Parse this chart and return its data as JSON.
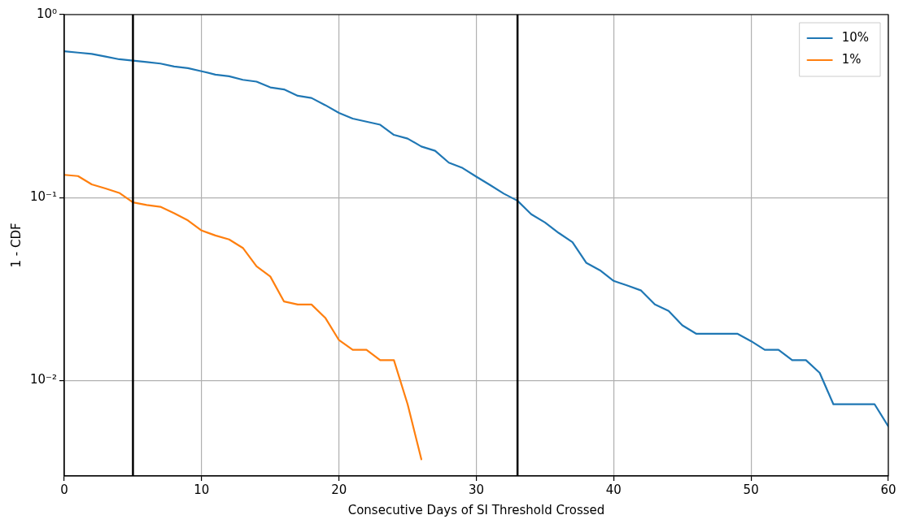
{
  "chart_data": {
    "type": "line",
    "xlabel": "Consecutive Days of SI Threshold Crossed",
    "ylabel": "1 - CDF",
    "x": [
      0,
      1,
      2,
      3,
      4,
      5,
      6,
      7,
      8,
      9,
      10,
      11,
      12,
      13,
      14,
      15,
      16,
      17,
      18,
      19,
      20,
      21,
      22,
      23,
      24,
      25,
      26,
      27,
      28,
      29,
      30,
      31,
      32,
      33,
      34,
      35,
      36,
      37,
      38,
      39,
      40,
      41,
      42,
      43,
      44,
      45,
      46,
      47,
      48,
      49,
      50,
      51,
      52,
      53,
      54,
      55,
      56,
      57,
      58,
      59,
      60
    ],
    "series": [
      {
        "name": "10%",
        "color": "#1f77b4",
        "values": [
          0.63,
          0.62,
          0.61,
          0.59,
          0.57,
          0.56,
          0.55,
          0.54,
          0.52,
          0.51,
          0.49,
          0.47,
          0.46,
          0.44,
          0.43,
          0.4,
          0.39,
          0.36,
          0.35,
          0.32,
          0.29,
          0.27,
          0.26,
          0.25,
          0.22,
          0.21,
          0.19,
          0.18,
          0.155,
          0.145,
          0.13,
          0.117,
          0.105,
          0.096,
          0.081,
          0.073,
          0.064,
          0.057,
          0.044,
          0.04,
          0.035,
          0.033,
          0.031,
          0.026,
          0.024,
          0.02,
          0.018,
          0.018,
          0.018,
          0.018,
          0.0164,
          0.0147,
          0.0147,
          0.0129,
          0.0129,
          0.011,
          0.0074,
          0.0074,
          0.0074,
          0.0074,
          0.0056
        ]
      },
      {
        "name": "1%",
        "color": "#ff7f0e",
        "x": [
          0,
          1,
          2,
          3,
          4,
          5,
          6,
          7,
          8,
          9,
          10,
          11,
          12,
          13,
          14,
          15,
          16,
          17,
          18,
          19,
          20,
          21,
          22,
          23,
          24,
          25,
          26
        ],
        "values": [
          0.133,
          0.131,
          0.118,
          0.112,
          0.106,
          0.094,
          0.091,
          0.089,
          0.082,
          0.075,
          0.066,
          0.062,
          0.059,
          0.053,
          0.042,
          0.037,
          0.027,
          0.026,
          0.026,
          0.022,
          0.0166,
          0.0147,
          0.0147,
          0.0129,
          0.0129,
          0.0074,
          0.0037
        ]
      }
    ],
    "xlim": [
      0,
      60
    ],
    "xticks": [
      0,
      10,
      20,
      30,
      40,
      50,
      60
    ],
    "ylim": [
      0.003,
      1
    ],
    "yticks": [
      {
        "value": 0.01,
        "label": "10⁻²"
      },
      {
        "value": 0.1,
        "label": "10⁻¹"
      },
      {
        "value": 1,
        "label": "10⁰"
      }
    ],
    "log": "y",
    "grid": true,
    "legend": "top right",
    "marker": "none",
    "line_style": "solid",
    "ref_lines": [
      {
        "axis": "x",
        "value": 5,
        "color": "#000000"
      },
      {
        "axis": "x",
        "value": 33,
        "color": "#000000"
      }
    ]
  }
}
